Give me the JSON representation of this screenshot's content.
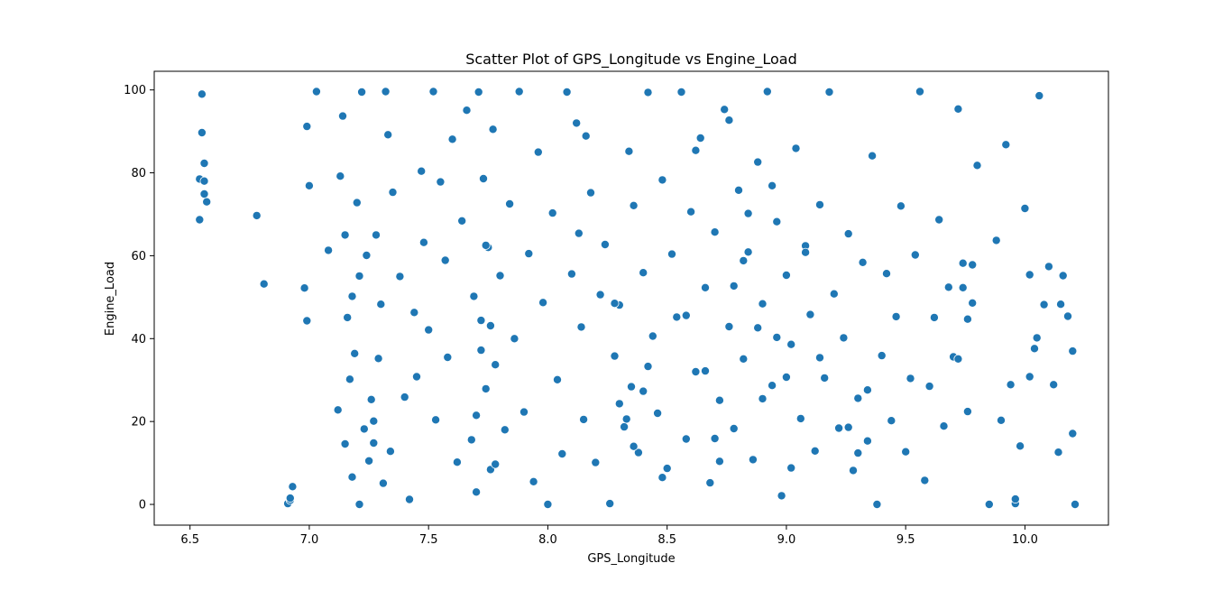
{
  "chart_data": {
    "type": "scatter",
    "title": "Scatter Plot of GPS_Longitude vs Engine_Load",
    "xlabel": "GPS_Longitude",
    "ylabel": "Engine_Load",
    "xlim": [
      6.35,
      10.35
    ],
    "ylim": [
      -5,
      104.5
    ],
    "xticks": [
      6.5,
      7.0,
      7.5,
      8.0,
      8.5,
      9.0,
      9.5,
      10.0
    ],
    "xtick_labels": [
      "6.5",
      "7.0",
      "7.5",
      "8.0",
      "8.5",
      "9.0",
      "9.5",
      "10.0"
    ],
    "yticks": [
      0,
      20,
      40,
      60,
      80,
      100
    ],
    "ytick_labels": [
      "0",
      "20",
      "40",
      "60",
      "80",
      "100"
    ],
    "grid": false,
    "legend": "none",
    "marker_color": "#1f77b4",
    "marker_edge_color": "#ffffff",
    "x": [
      6.54,
      6.54,
      6.55,
      6.55,
      6.56,
      6.56,
      6.56,
      6.57,
      6.78,
      6.81,
      6.91,
      6.92,
      6.92,
      6.93,
      6.98,
      6.99,
      6.99,
      7.0,
      7.03,
      7.08,
      7.12,
      7.13,
      7.14,
      7.15,
      7.15,
      7.16,
      7.17,
      7.18,
      7.19,
      7.2,
      7.21,
      7.21,
      7.22,
      7.23,
      7.24,
      7.25,
      7.26,
      7.27,
      7.28,
      7.29,
      7.3,
      7.31,
      7.32,
      7.33,
      7.34,
      7.35,
      7.38,
      7.4,
      7.42,
      7.44,
      7.45,
      7.47,
      7.48,
      7.5,
      7.52,
      7.53,
      7.55,
      7.57,
      7.58,
      7.6,
      7.62,
      7.64,
      7.66,
      7.68,
      7.69,
      7.7,
      7.71,
      7.72,
      7.73,
      7.74,
      7.75,
      7.76,
      7.77,
      7.78,
      7.8,
      7.82,
      7.84,
      7.86,
      7.88,
      7.9,
      7.92,
      7.94,
      7.96,
      7.98,
      8.0,
      8.02,
      8.04,
      8.06,
      8.08,
      8.1,
      8.12,
      8.13,
      8.14,
      8.15,
      8.16,
      8.18,
      8.2,
      8.22,
      8.24,
      8.26,
      8.28,
      8.3,
      8.32,
      8.34,
      8.35,
      8.36,
      8.38,
      8.4,
      8.42,
      8.44,
      8.46,
      8.48,
      8.5,
      8.52,
      8.54,
      8.56,
      8.58,
      8.6,
      8.62,
      8.64,
      8.66,
      8.68,
      8.7,
      8.72,
      8.74,
      8.76,
      8.78,
      8.8,
      8.82,
      8.84,
      8.86,
      8.88,
      8.9,
      8.92,
      8.94,
      8.96,
      8.98,
      9.0,
      9.02,
      9.04,
      9.06,
      9.08,
      9.1,
      9.12,
      9.14,
      9.16,
      9.18,
      9.2,
      9.22,
      9.24,
      9.26,
      9.28,
      9.3,
      9.32,
      9.34,
      9.36,
      9.38,
      9.4,
      9.42,
      9.44,
      9.46,
      9.48,
      9.5,
      9.52,
      9.54,
      9.56,
      9.58,
      9.6,
      9.62,
      9.64,
      9.66,
      9.68,
      9.7,
      9.72,
      9.74,
      9.76,
      9.78,
      9.8,
      9.85,
      9.88,
      9.9,
      9.92,
      9.94,
      9.96,
      9.98,
      10.0,
      10.02,
      10.04,
      10.06,
      10.08,
      10.1,
      10.12,
      10.14,
      10.16,
      10.18,
      10.2,
      10.21,
      7.18,
      7.27,
      7.74,
      8.28,
      8.33,
      8.4,
      8.58,
      8.62,
      8.66,
      8.72,
      8.78,
      8.84,
      8.9,
      8.96,
      9.02,
      9.08,
      9.14,
      8.7,
      8.76,
      8.82,
      8.88,
      8.94,
      9.0,
      7.7,
      7.72,
      7.76,
      7.78,
      8.3,
      8.36,
      8.42,
      8.48,
      9.26,
      9.3,
      9.34,
      9.74,
      9.76,
      9.78,
      9.72,
      10.2,
      10.15,
      10.05,
      10.02,
      9.96
    ],
    "y": [
      78.5,
      68.7,
      89.7,
      99.0,
      78.0,
      82.3,
      74.9,
      73.0,
      69.7,
      53.2,
      0.2,
      1.0,
      1.5,
      4.3,
      52.2,
      44.3,
      91.2,
      76.9,
      99.6,
      61.3,
      22.8,
      79.2,
      93.7,
      14.6,
      65.0,
      45.1,
      30.2,
      50.2,
      36.4,
      72.8,
      55.1,
      0.0,
      99.5,
      18.2,
      60.1,
      10.5,
      25.3,
      20.1,
      65.0,
      35.2,
      48.3,
      5.1,
      99.6,
      89.2,
      12.8,
      75.3,
      55.0,
      25.9,
      1.2,
      46.3,
      30.8,
      80.4,
      63.2,
      42.1,
      99.6,
      20.4,
      77.8,
      58.9,
      35.5,
      88.1,
      10.2,
      68.4,
      95.1,
      15.6,
      50.2,
      3.0,
      99.5,
      44.4,
      78.6,
      27.9,
      62.0,
      8.4,
      90.5,
      33.7,
      55.2,
      18.0,
      72.5,
      40.0,
      99.6,
      22.3,
      60.5,
      5.5,
      85.0,
      48.7,
      0.0,
      70.3,
      30.1,
      12.2,
      99.5,
      55.6,
      92.0,
      65.4,
      42.8,
      20.5,
      88.9,
      75.2,
      10.1,
      50.6,
      62.7,
      0.2,
      35.8,
      48.1,
      18.7,
      85.2,
      28.4,
      72.1,
      12.5,
      55.9,
      99.4,
      40.6,
      22.0,
      78.3,
      8.7,
      60.4,
      45.2,
      99.5,
      15.8,
      70.6,
      32.0,
      88.4,
      52.3,
      5.2,
      65.7,
      25.1,
      95.3,
      42.9,
      18.3,
      75.8,
      35.1,
      60.9,
      10.8,
      82.6,
      48.4,
      99.6,
      28.7,
      68.2,
      2.1,
      55.3,
      38.6,
      85.9,
      20.7,
      62.4,
      45.8,
      12.9,
      72.3,
      30.5,
      99.5,
      50.8,
      18.4,
      40.2,
      65.3,
      8.2,
      25.6,
      58.4,
      15.3,
      84.1,
      0.0,
      35.9,
      55.7,
      20.2,
      45.3,
      72.0,
      12.7,
      30.4,
      60.2,
      99.6,
      5.8,
      28.5,
      45.1,
      68.7,
      18.9,
      52.4,
      35.6,
      95.4,
      58.2,
      22.4,
      48.6,
      81.8,
      0.0,
      63.7,
      20.3,
      86.8,
      28.9,
      0.2,
      14.1,
      71.4,
      55.4,
      37.6,
      98.6,
      48.2,
      57.4,
      28.9,
      12.6,
      55.2,
      45.4,
      37.0,
      0.0,
      6.6,
      14.8,
      62.5,
      48.5,
      20.6,
      27.3,
      45.6,
      85.4,
      32.2,
      10.4,
      52.7,
      70.2,
      25.5,
      40.3,
      8.8,
      60.8,
      35.4,
      15.9,
      92.7,
      58.8,
      42.6,
      76.9,
      30.7,
      21.5,
      37.2,
      43.1,
      9.7,
      24.3,
      14.0,
      33.3,
      6.5,
      18.6,
      12.4,
      27.6,
      52.3,
      44.7,
      57.8,
      35.1,
      17.1,
      48.3,
      40.2,
      30.8,
      1.3
    ]
  }
}
